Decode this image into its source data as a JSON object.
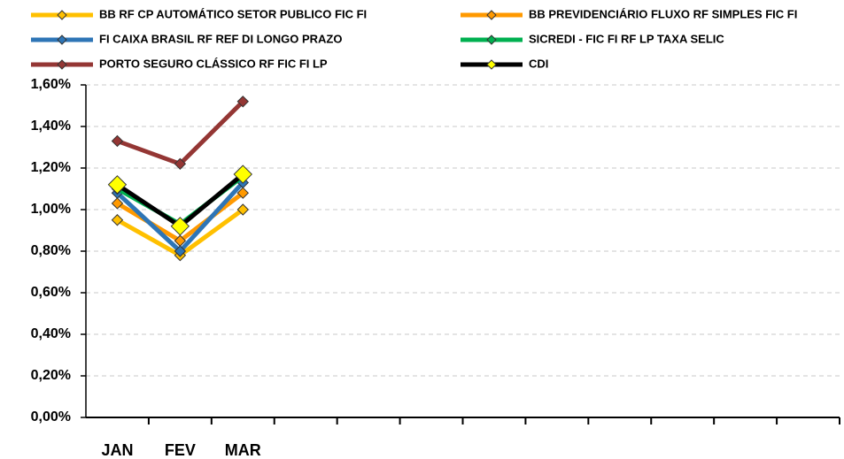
{
  "chart_data": {
    "type": "line",
    "categories": [
      "JAN",
      "FEV",
      "MAR",
      null,
      null,
      null,
      null,
      null,
      null,
      null,
      null,
      null
    ],
    "series": [
      {
        "name": "BB RF CP AUTOMÁTICO SETOR PUBLICO FIC FI",
        "color": "#ffc000",
        "marker_color": "#ffc000",
        "values": [
          0.95,
          0.78,
          1.0,
          null,
          null,
          null,
          null,
          null,
          null,
          null,
          null,
          null
        ]
      },
      {
        "name": "BB PREVIDENCIÁRIO FLUXO RF SIMPLES FIC FI",
        "color": "#ff9900",
        "marker_color": "#ff9900",
        "values": [
          1.03,
          0.85,
          1.08,
          null,
          null,
          null,
          null,
          null,
          null,
          null,
          null,
          null
        ]
      },
      {
        "name": "FI CAIXA BRASIL RF REF DI LONGO PRAZO",
        "color": "#2e75b6",
        "marker_color": "#2e75b6",
        "values": [
          1.08,
          0.8,
          1.13,
          null,
          null,
          null,
          null,
          null,
          null,
          null,
          null,
          null
        ]
      },
      {
        "name": "SICREDI - FIC FI RF LP TAXA SELIC",
        "color": "#00b050",
        "marker_color": "#00b050",
        "values": [
          1.1,
          0.93,
          1.16,
          null,
          null,
          null,
          null,
          null,
          null,
          null,
          null,
          null
        ]
      },
      {
        "name": "PORTO SEGURO CLÁSSICO RF FIC FI LP",
        "color": "#943634",
        "marker_color": "#943634",
        "values": [
          1.33,
          1.22,
          1.52,
          null,
          null,
          null,
          null,
          null,
          null,
          null,
          null,
          null
        ]
      },
      {
        "name": "CDI",
        "color": "#000000",
        "marker_color": "#ffff00",
        "values": [
          1.12,
          0.92,
          1.17,
          null,
          null,
          null,
          null,
          null,
          null,
          null,
          null,
          null
        ]
      }
    ],
    "ylim": [
      0,
      1.6
    ],
    "yticks": [
      {
        "value": 0,
        "label": "0,00%"
      },
      {
        "value": 0.2,
        "label": "0,20%"
      },
      {
        "value": 0.4,
        "label": "0,40%"
      },
      {
        "value": 0.6,
        "label": "0,60%"
      },
      {
        "value": 0.8,
        "label": "0,80%"
      },
      {
        "value": 1.0,
        "label": "1,00%"
      },
      {
        "value": 1.2,
        "label": "1,20%"
      },
      {
        "value": 1.4,
        "label": "1,40%"
      },
      {
        "value": 1.6,
        "label": "1,60%"
      }
    ],
    "grid": true
  }
}
